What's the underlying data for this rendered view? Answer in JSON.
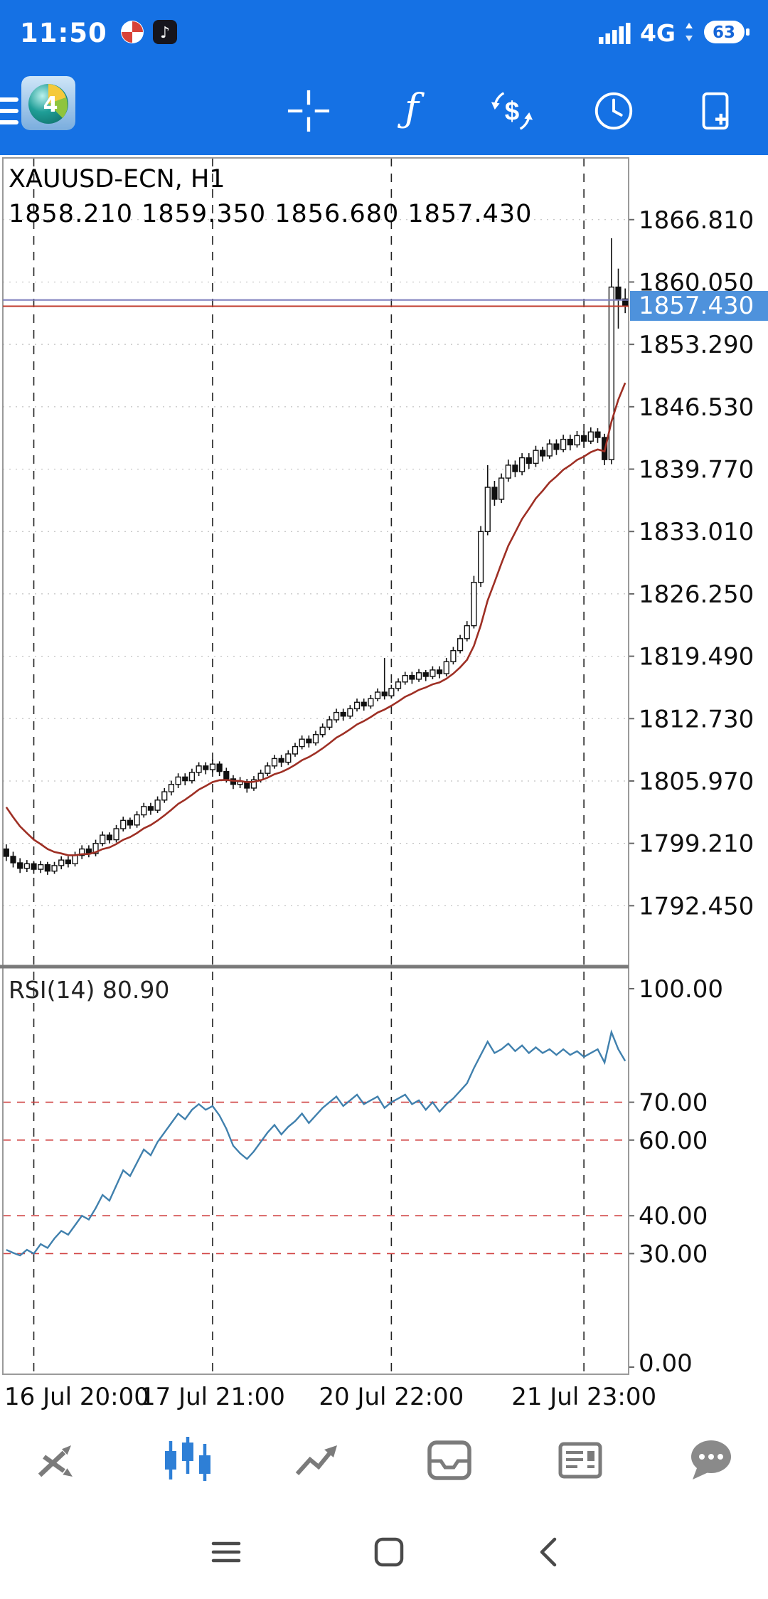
{
  "colors": {
    "topbar_blue": "#1571e4",
    "badge_bg": "#4e92dc",
    "candle": "#111111",
    "ma_line": "#9e2f24",
    "rsi_line": "#4080ad",
    "rsi_level_red": "#d04040",
    "active_tab_blue": "#2e7fd6",
    "inactive_tab_gray": "#7b7b7b"
  },
  "status_bar": {
    "time": "11:50",
    "network": "4G",
    "battery_percent": "63",
    "notification_icons": [
      "swirl-app",
      "music-app"
    ]
  },
  "toolbar": {
    "icon_names": [
      "menu",
      "mt4-logo",
      "crosshair",
      "indicators-function",
      "new-order-dollar",
      "timeframes-clock",
      "new-chart"
    ]
  },
  "chart_header": {
    "symbol": "XAUUSD-ECN, H1",
    "ohlc_line": "1858.210 1859.350 1856.680 1857.430"
  },
  "price_badge": "1857.430",
  "bottom_nav": {
    "items": [
      "quotes",
      "charts",
      "trade",
      "history",
      "news",
      "messages"
    ],
    "active": "charts"
  },
  "android_nav": [
    "recents",
    "home",
    "back"
  ],
  "chart_data": {
    "type": "candlestick",
    "symbol": "XAUUSD-ECN",
    "timeframe": "H1",
    "last": {
      "open": 1858.21,
      "high": 1859.35,
      "low": 1856.68,
      "close": 1857.43
    },
    "current_price": 1857.43,
    "ask_price": 1858.1,
    "price_top": 1873.5,
    "price_bottom": 1786.0,
    "price_axis_labels": [
      "1866.810",
      "1860.050",
      "1853.290",
      "1846.530",
      "1839.770",
      "1833.010",
      "1826.250",
      "1819.490",
      "1812.730",
      "1805.970",
      "1799.210",
      "1792.450"
    ],
    "time_labels": [
      "16 Jul 20:00",
      "17 Jul 21:00",
      "20 Jul 22:00",
      "21 Jul 23:00"
    ],
    "grid_bars": [
      4,
      30,
      56,
      84
    ],
    "ma": {
      "type": "EMA",
      "alpha": 0.18,
      "seed": 1804.3
    },
    "candles": [
      [
        1798.6,
        1799.1,
        1797.3,
        1797.8
      ],
      [
        1797.8,
        1798.3,
        1796.6,
        1797.1
      ],
      [
        1797.1,
        1797.6,
        1796.0,
        1796.5
      ],
      [
        1796.5,
        1797.4,
        1796.1,
        1797.0
      ],
      [
        1797.0,
        1797.3,
        1795.9,
        1796.4
      ],
      [
        1796.4,
        1797.3,
        1796.0,
        1796.9
      ],
      [
        1796.9,
        1797.2,
        1795.8,
        1796.2
      ],
      [
        1796.2,
        1797.2,
        1795.9,
        1796.8
      ],
      [
        1796.8,
        1797.8,
        1796.4,
        1797.4
      ],
      [
        1797.4,
        1797.8,
        1796.6,
        1797.0
      ],
      [
        1797.0,
        1798.3,
        1796.7,
        1797.9
      ],
      [
        1797.9,
        1799.0,
        1797.5,
        1798.6
      ],
      [
        1798.6,
        1799.0,
        1797.7,
        1798.1
      ],
      [
        1798.1,
        1799.6,
        1797.8,
        1799.2
      ],
      [
        1799.2,
        1800.5,
        1798.9,
        1800.1
      ],
      [
        1800.1,
        1800.4,
        1799.2,
        1799.6
      ],
      [
        1799.6,
        1801.2,
        1799.3,
        1800.8
      ],
      [
        1800.8,
        1802.1,
        1800.5,
        1801.7
      ],
      [
        1801.7,
        1802.0,
        1800.8,
        1801.2
      ],
      [
        1801.2,
        1802.7,
        1800.9,
        1802.3
      ],
      [
        1802.3,
        1803.6,
        1802.0,
        1803.2
      ],
      [
        1803.2,
        1803.6,
        1802.3,
        1802.8
      ],
      [
        1802.8,
        1804.3,
        1802.5,
        1803.9
      ],
      [
        1803.9,
        1805.2,
        1803.6,
        1804.8
      ],
      [
        1804.8,
        1806.0,
        1804.4,
        1805.6
      ],
      [
        1805.6,
        1806.8,
        1805.2,
        1806.4
      ],
      [
        1806.4,
        1806.8,
        1805.5,
        1806.0
      ],
      [
        1806.0,
        1807.3,
        1805.7,
        1806.9
      ],
      [
        1806.9,
        1808.0,
        1806.5,
        1807.6
      ],
      [
        1807.6,
        1808.0,
        1806.7,
        1807.2
      ],
      [
        1807.2,
        1808.3,
        1806.9,
        1807.8
      ],
      [
        1807.8,
        1808.1,
        1806.5,
        1807.0
      ],
      [
        1807.0,
        1807.4,
        1805.8,
        1806.2
      ],
      [
        1806.2,
        1806.6,
        1805.1,
        1805.6
      ],
      [
        1805.6,
        1806.4,
        1805.2,
        1805.9
      ],
      [
        1805.9,
        1806.2,
        1804.7,
        1805.2
      ],
      [
        1805.2,
        1806.5,
        1804.9,
        1806.1
      ],
      [
        1806.1,
        1807.2,
        1805.8,
        1806.8
      ],
      [
        1806.8,
        1808.0,
        1806.5,
        1807.6
      ],
      [
        1807.6,
        1808.8,
        1807.3,
        1808.4
      ],
      [
        1808.4,
        1808.8,
        1807.5,
        1808.0
      ],
      [
        1808.0,
        1809.3,
        1807.7,
        1808.9
      ],
      [
        1808.9,
        1810.1,
        1808.6,
        1809.7
      ],
      [
        1809.7,
        1810.9,
        1809.4,
        1810.5
      ],
      [
        1810.5,
        1810.9,
        1809.6,
        1810.1
      ],
      [
        1810.1,
        1811.4,
        1809.8,
        1811.0
      ],
      [
        1811.0,
        1812.2,
        1810.7,
        1811.8
      ],
      [
        1811.8,
        1813.0,
        1811.5,
        1812.6
      ],
      [
        1812.6,
        1813.8,
        1812.3,
        1813.4
      ],
      [
        1813.4,
        1813.8,
        1812.5,
        1813.0
      ],
      [
        1813.0,
        1814.2,
        1812.7,
        1813.8
      ],
      [
        1813.8,
        1814.9,
        1813.5,
        1814.5
      ],
      [
        1814.5,
        1814.9,
        1813.6,
        1814.1
      ],
      [
        1814.1,
        1815.3,
        1813.8,
        1814.9
      ],
      [
        1814.9,
        1816.0,
        1814.6,
        1815.6
      ],
      [
        1815.6,
        1819.3,
        1814.8,
        1815.2
      ],
      [
        1815.2,
        1816.4,
        1814.9,
        1816.0
      ],
      [
        1816.0,
        1817.1,
        1815.7,
        1816.7
      ],
      [
        1816.7,
        1817.8,
        1816.4,
        1817.4
      ],
      [
        1817.4,
        1817.8,
        1816.5,
        1817.0
      ],
      [
        1817.0,
        1818.1,
        1816.7,
        1817.7
      ],
      [
        1817.7,
        1818.0,
        1816.8,
        1817.3
      ],
      [
        1817.3,
        1818.4,
        1817.0,
        1818.0
      ],
      [
        1818.0,
        1818.4,
        1817.1,
        1817.6
      ],
      [
        1817.6,
        1819.3,
        1817.3,
        1818.9
      ],
      [
        1818.9,
        1820.5,
        1818.6,
        1820.1
      ],
      [
        1820.1,
        1821.8,
        1819.8,
        1821.4
      ],
      [
        1821.4,
        1823.3,
        1821.1,
        1822.8
      ],
      [
        1822.8,
        1828.2,
        1822.5,
        1827.5
      ],
      [
        1827.5,
        1833.6,
        1827.0,
        1833.0
      ],
      [
        1833.0,
        1840.2,
        1832.6,
        1837.8
      ],
      [
        1837.8,
        1838.5,
        1835.8,
        1836.5
      ],
      [
        1836.5,
        1839.3,
        1836.1,
        1838.8
      ],
      [
        1838.8,
        1840.8,
        1838.4,
        1840.2
      ],
      [
        1840.2,
        1840.7,
        1838.9,
        1839.5
      ],
      [
        1839.5,
        1841.5,
        1839.1,
        1841.0
      ],
      [
        1841.0,
        1841.5,
        1839.8,
        1840.4
      ],
      [
        1840.4,
        1842.3,
        1840.0,
        1841.8
      ],
      [
        1841.8,
        1842.2,
        1840.6,
        1841.2
      ],
      [
        1841.2,
        1843.0,
        1840.9,
        1842.5
      ],
      [
        1842.5,
        1843.0,
        1841.3,
        1841.9
      ],
      [
        1841.9,
        1843.5,
        1841.6,
        1843.0
      ],
      [
        1843.0,
        1843.5,
        1841.8,
        1842.4
      ],
      [
        1842.4,
        1843.9,
        1842.1,
        1843.4
      ],
      [
        1843.4,
        1843.9,
        1842.2,
        1842.8
      ],
      [
        1842.8,
        1844.3,
        1842.5,
        1843.8
      ],
      [
        1843.8,
        1844.2,
        1842.6,
        1843.2
      ],
      [
        1843.2,
        1843.6,
        1840.2,
        1840.8
      ],
      [
        1840.8,
        1864.8,
        1840.3,
        1859.5
      ],
      [
        1859.5,
        1861.5,
        1855.0,
        1858.2
      ],
      [
        1858.21,
        1859.35,
        1856.68,
        1857.43
      ]
    ],
    "rsi": {
      "label": "RSI(14) 80.90",
      "period": 14,
      "value": 80.9,
      "levels": [
        70,
        60,
        40,
        30
      ],
      "axis_values": [
        100,
        70,
        60,
        40,
        30,
        0
      ],
      "axis_labels": [
        "100.00",
        "70.00",
        "60.00",
        "40.00",
        "30.00",
        "0.00"
      ],
      "values": [
        31.0,
        30.2,
        29.5,
        31.0,
        30.0,
        32.5,
        31.5,
        34.0,
        36.0,
        35.0,
        37.5,
        40.0,
        39.0,
        42.0,
        45.5,
        44.0,
        48.0,
        52.0,
        50.5,
        54.0,
        57.5,
        56.0,
        59.5,
        62.0,
        64.5,
        67.0,
        65.5,
        68.0,
        69.5,
        68.0,
        69.0,
        66.5,
        63.0,
        58.5,
        56.5,
        55.0,
        57.0,
        59.5,
        62.0,
        64.0,
        61.5,
        63.5,
        65.0,
        67.0,
        64.5,
        66.5,
        68.5,
        70.0,
        71.5,
        69.0,
        70.5,
        72.0,
        69.5,
        70.5,
        71.5,
        68.5,
        70.0,
        71.0,
        72.0,
        69.5,
        70.5,
        68.0,
        70.0,
        67.5,
        69.5,
        71.0,
        73.0,
        75.0,
        79.0,
        82.5,
        86.0,
        83.0,
        84.0,
        85.5,
        83.5,
        85.0,
        83.0,
        84.5,
        83.0,
        84.0,
        82.5,
        84.0,
        82.5,
        83.5,
        82.0,
        83.0,
        84.0,
        80.5,
        88.5,
        84.0,
        80.9
      ]
    }
  }
}
